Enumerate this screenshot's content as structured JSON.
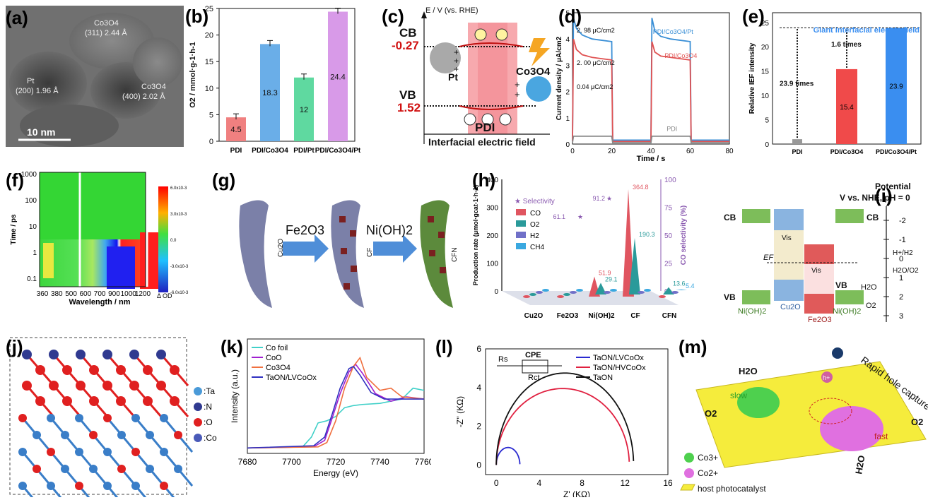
{
  "labels": [
    "(a)",
    "(b)",
    "(c)",
    "(d)",
    "(e)",
    "(f)",
    "(g)",
    "(h)",
    "(i)",
    "(j)",
    "(k)",
    "(l)",
    "(m)"
  ],
  "panel_a": {
    "scalebar": "10 nm",
    "ann1": "Co3O4",
    "ann1b": "(311) 2.44 Å",
    "ann2": "Pt",
    "ann2b": "(200) 1.96 Å",
    "ann3": "Co3O4",
    "ann3b": "(400) 2.02 Å"
  },
  "panel_c": {
    "yaxis": "E / V (vs. RHE)",
    "cb": "CB",
    "cb_val": "-0.27",
    "vb": "VB",
    "vb_val": "1.52",
    "pt": "Pt",
    "co": "Co3O4",
    "pdi": "PDI",
    "field": "Interfacial electric field"
  },
  "panel_d": {
    "ylabel": "Current density / μA/cm2",
    "xlabel": "Time / s",
    "l1": "2. 98 μC/cm2",
    "l2": "2. 00 μC/cm2",
    "l3": "0.04 μC/cm2",
    "leg1": "PDI/Co3O4/Pt",
    "leg2": "PDI/Co3O4",
    "leg3": "PDI"
  },
  "panel_e": {
    "ylabel": "Relative IEF intensity",
    "title": "Giant interfacial electric field",
    "ann1": "23.9 times",
    "ann2": "1.6 times"
  },
  "panel_f": {
    "ylabel": "Time / ps",
    "xlabel": "Wavelength / nm",
    "cbar_label": "Δ OD",
    "cbar_ticks": [
      "6.0x10-3",
      "3.0x10-3",
      "0.0",
      "-3.0x10-3",
      "-6.0x10-3"
    ]
  },
  "panel_g": {
    "s1": "Cu2O",
    "s2": "CF",
    "s3": "CFN",
    "arrow1": "Fe2O3",
    "arrow2": "Ni(OH)2"
  },
  "panel_h": {
    "ylabel": "Production rate (μmol·gcat-1·h-1)",
    "y2label": "CO selectivity (%)",
    "legend_title": "Selectivity",
    "sel_vals": [
      "61.1",
      "91.2"
    ]
  },
  "panel_i": {
    "title1": "Potential",
    "title2": "V vs. NHE, pH = 0",
    "cb": "CB",
    "vb": "VB",
    "cu2o": "Cu2O",
    "fe2o3": "Fe2O3",
    "nioh1": "Ni(OH)2",
    "nioh2": "Ni(OH)2",
    "ef": "EF",
    "h2": "H+/H2",
    "o2": "H2O/O2",
    "vis": "Vis",
    "h2o": "H2O",
    "o2b": "O2",
    "ticks": [
      "-2",
      "-1",
      "0",
      "1",
      "2",
      "3"
    ]
  },
  "panel_j": {
    "legend": [
      ":Ta",
      ":N",
      ":O",
      ":Co"
    ]
  },
  "panel_k": {
    "ylabel": "Intensity (a.u.)",
    "xlabel": "Energy (eV)",
    "legend": [
      "Co foil",
      "CoO",
      "Co3O4",
      "TaON/LVCoOx"
    ]
  },
  "panel_l": {
    "ylabel": "-Z'' (KΩ)",
    "xlabel": "Z' (KΩ)",
    "legend": [
      "TaON/LVCoOx",
      "TaON/HVCoOx",
      "TaON"
    ],
    "circuit": [
      "Rs",
      "CPE",
      "Rct"
    ]
  },
  "panel_m": {
    "h2o": "H2O",
    "o2": "O2",
    "slow": "slow",
    "fast": "fast",
    "rapid": "Rapid hole capture",
    "h2o2": "H2O",
    "o2r": "O2",
    "legend": [
      "Co3+",
      "Co2+",
      "host photocatalyst"
    ]
  },
  "chart_data": [
    {
      "type": "bar",
      "panel": "b",
      "categories": [
        "PDI",
        "PDI/Co3O4",
        "PDI/Pt",
        "PDI/Co3O4/Pt"
      ],
      "values": [
        4.5,
        18.3,
        12,
        24.4
      ],
      "ylabel": "O2 / mmol·g-1·h-1",
      "ylim": [
        0,
        25
      ],
      "yticks": [
        0,
        5,
        10,
        15,
        20,
        25
      ],
      "colors": [
        "#f08080",
        "#6aaee8",
        "#5fd9a0",
        "#d89ae8"
      ]
    },
    {
      "type": "line",
      "panel": "d",
      "xlim": [
        0,
        80
      ],
      "ylim": [
        0,
        5
      ],
      "xticks": [
        0,
        20,
        40,
        60,
        80
      ],
      "yticks": [
        0,
        1,
        2,
        3,
        4,
        5
      ],
      "series": [
        {
          "name": "PDI/Co3O4/Pt",
          "color": "#3a8fd6",
          "x": [
            0,
            0.5,
            2,
            5,
            10,
            15,
            20,
            20.5,
            40,
            40.5,
            42,
            45,
            50,
            55,
            60,
            60.5,
            80
          ],
          "y": [
            0.1,
            4.8,
            4.4,
            4.15,
            4.0,
            3.95,
            3.9,
            0.15,
            0.15,
            4.8,
            4.3,
            4.1,
            4.0,
            3.95,
            3.9,
            0.15,
            0.15
          ]
        },
        {
          "name": "PDI/Co3O4",
          "color": "#e05252",
          "x": [
            0,
            0.5,
            2,
            5,
            10,
            15,
            20,
            20.5,
            40,
            40.5,
            42,
            45,
            50,
            55,
            60,
            60.5,
            80
          ],
          "y": [
            0.1,
            4.0,
            3.6,
            3.4,
            3.3,
            3.25,
            3.2,
            0.1,
            0.1,
            3.9,
            3.5,
            3.35,
            3.3,
            3.25,
            3.2,
            0.1,
            0.1
          ]
        },
        {
          "name": "PDI",
          "color": "#888888",
          "x": [
            0,
            0.5,
            20,
            20.5,
            40,
            40.5,
            60,
            60.5,
            80
          ],
          "y": [
            0.05,
            0.3,
            0.3,
            0.05,
            0.05,
            0.3,
            0.3,
            0.05,
            0.05
          ]
        }
      ]
    },
    {
      "type": "bar",
      "panel": "e",
      "categories": [
        "PDI",
        "PDI/Co3O4",
        "PDI/Co3O4/Pt"
      ],
      "values": [
        1,
        15.4,
        23.9
      ],
      "ylabel": "Relative IEF intensity",
      "ylim": [
        0,
        27
      ],
      "yticks": [
        0,
        5,
        10,
        15,
        20,
        25
      ],
      "colors": [
        "#999999",
        "#f04a4a",
        "#3a8ef0"
      ]
    },
    {
      "type": "heatmap",
      "panel": "f",
      "xticks": [
        "360",
        "380",
        "500",
        "600",
        "700",
        "900",
        "1000",
        "1200"
      ],
      "yticks": [
        "0.1",
        "1",
        "10",
        "100",
        "1000"
      ]
    },
    {
      "type": "bar",
      "panel": "h",
      "categories": [
        "Cu2O",
        "Fe2O3",
        "Ni(OH)2",
        "CF",
        "CFN"
      ],
      "series": [
        {
          "name": "CO",
          "values": [
            0,
            0,
            51.9,
            364.8,
            0
          ]
        },
        {
          "name": "O2",
          "values": [
            0,
            0,
            29.1,
            190.3,
            13.6
          ]
        },
        {
          "name": "H2",
          "values": [
            0,
            0,
            0,
            0,
            0
          ]
        },
        {
          "name": "CH4",
          "values": [
            0,
            0,
            0,
            0,
            5.4
          ]
        }
      ],
      "selectivity": [
        0,
        0,
        61.1,
        91.2,
        0
      ],
      "yticks": [
        0,
        100,
        200,
        300,
        400
      ],
      "y2ticks": [
        0,
        25,
        50,
        75,
        100
      ]
    },
    {
      "type": "line",
      "panel": "k",
      "xlim": [
        7680,
        7760
      ],
      "xticks": [
        7680,
        7700,
        7720,
        7740,
        7760
      ],
      "series": [
        {
          "name": "Co foil",
          "color": "#40d0c8",
          "x": [
            7680,
            7705,
            7709,
            7712,
            7716,
            7720,
            7724,
            7728,
            7732,
            7740,
            7750,
            7755,
            7760
          ],
          "y": [
            0.05,
            0.06,
            0.15,
            0.28,
            0.3,
            0.34,
            0.42,
            0.44,
            0.45,
            0.46,
            0.5,
            0.6,
            0.58
          ]
        },
        {
          "name": "CoO",
          "color": "#a020d0",
          "x": [
            7680,
            7710,
            7715,
            7718,
            7722,
            7726,
            7729,
            7732,
            7738,
            7745,
            7752,
            7760
          ],
          "y": [
            0.05,
            0.06,
            0.12,
            0.3,
            0.55,
            0.75,
            0.82,
            0.74,
            0.55,
            0.48,
            0.52,
            0.5
          ]
        },
        {
          "name": "Co3O4",
          "color": "#f07040",
          "x": [
            7680,
            7712,
            7716,
            7720,
            7724,
            7728,
            7731,
            7734,
            7740,
            7745,
            7750,
            7760
          ],
          "y": [
            0.05,
            0.06,
            0.1,
            0.3,
            0.6,
            0.8,
            0.88,
            0.7,
            0.58,
            0.6,
            0.52,
            0.5
          ]
        },
        {
          "name": "TaON/LVCoOx",
          "color": "#3030c0",
          "x": [
            7680,
            7710,
            7715,
            7719,
            7722,
            7726,
            7728,
            7731,
            7736,
            7742,
            7750,
            7760
          ],
          "y": [
            0.05,
            0.07,
            0.15,
            0.4,
            0.6,
            0.78,
            0.8,
            0.72,
            0.56,
            0.5,
            0.5,
            0.5
          ]
        }
      ]
    },
    {
      "type": "line",
      "panel": "l",
      "xlim": [
        -1,
        16
      ],
      "ylim": [
        -0.5,
        6
      ],
      "xticks": [
        0,
        4,
        8,
        12,
        16
      ],
      "yticks": [
        0,
        2,
        4,
        6
      ],
      "series": [
        {
          "name": "TaON/LVCoOx",
          "color": "#2a2ad0",
          "center": [
            1.1,
            0
          ],
          "r": 1.1,
          "ry": 0.9,
          "end": 2.1
        },
        {
          "name": "TaON/HVCoOx",
          "color": "#e02040",
          "center": [
            6.2,
            0
          ],
          "r": 6.2,
          "ry": 3.95,
          "end": 12.4
        },
        {
          "name": "TaON",
          "color": "#111111",
          "center": [
            6.4,
            0
          ],
          "r": 6.4,
          "ry": 4.75,
          "end": 12.8
        }
      ]
    }
  ]
}
